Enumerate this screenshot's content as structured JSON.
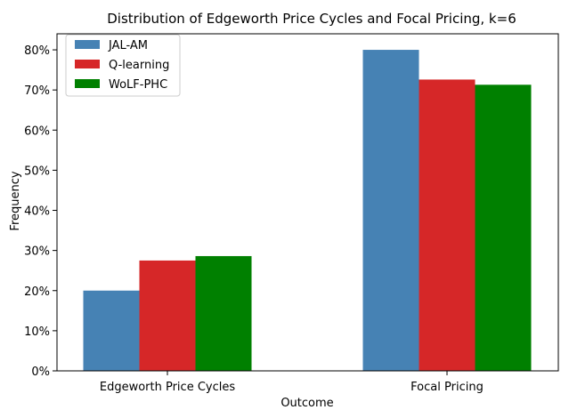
{
  "chart_data": {
    "type": "bar",
    "title": "Distribution of Edgeworth Price Cycles and Focal Pricing, k=6",
    "xlabel": "Outcome",
    "ylabel": "Frequency",
    "categories": [
      "Edgeworth Price Cycles",
      "Focal Pricing"
    ],
    "series": [
      {
        "name": "JAL-AM",
        "values": [
          20.0,
          80.0
        ],
        "color": "#4682b4"
      },
      {
        "name": "Q-learning",
        "values": [
          27.5,
          72.6
        ],
        "color": "#d62728"
      },
      {
        "name": "WoLF-PHC",
        "values": [
          28.6,
          71.3
        ],
        "color": "#008000"
      }
    ],
    "ylim": [
      0,
      84
    ],
    "yticks": [
      0,
      10,
      20,
      30,
      40,
      50,
      60,
      70,
      80
    ],
    "ytick_format": "percent",
    "grid": false,
    "legend_position": "top-left"
  }
}
